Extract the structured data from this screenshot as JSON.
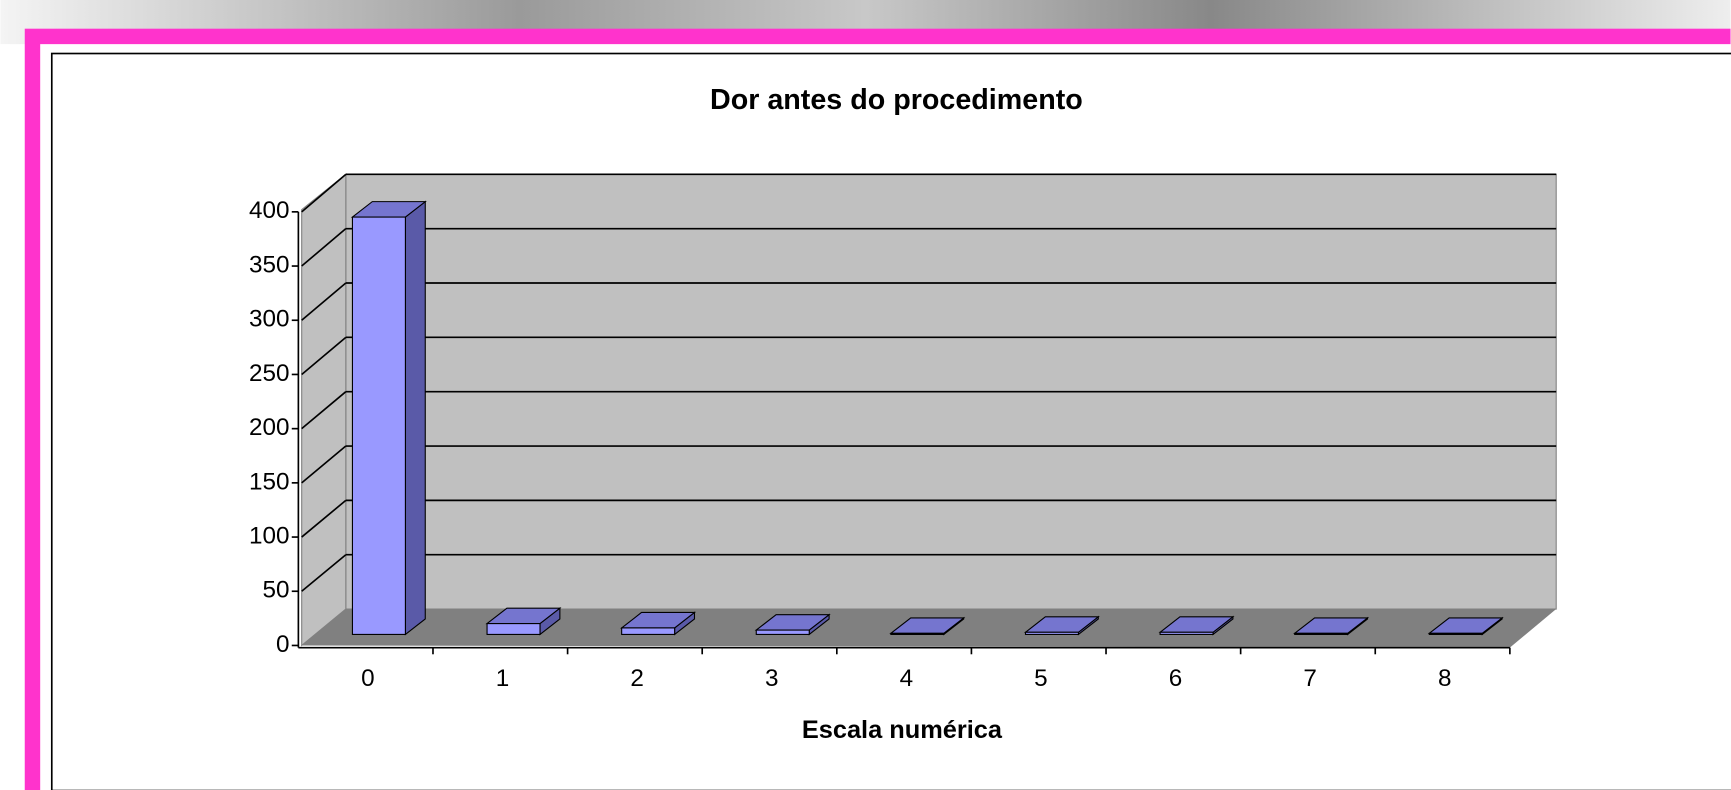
{
  "chart_data": {
    "type": "bar3d",
    "title": "Dor antes do procedimento",
    "x_label": "Escala numérica",
    "categories": [
      "0",
      "1",
      "2",
      "3",
      "4",
      "5",
      "6",
      "7",
      "8"
    ],
    "values": [
      385,
      10,
      6,
      4,
      1,
      2,
      2,
      1,
      1
    ],
    "color": "#9999ff",
    "ylim": [
      0,
      400
    ],
    "yticks": [
      0,
      50,
      100,
      150,
      200,
      250,
      300,
      350,
      400
    ],
    "grid": true
  }
}
